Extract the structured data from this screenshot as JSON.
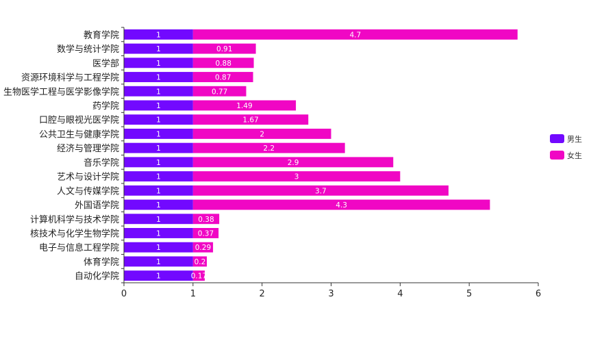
{
  "chart_data": {
    "type": "bar",
    "orientation": "horizontal",
    "stacked": true,
    "categories": [
      "教育学院",
      "数学与统计学院",
      "医学部",
      "资源环境科学与工程学院",
      "生物医学工程与医学影像学院",
      "药学院",
      "口腔与眼视光医学院",
      "公共卫生与健康学院",
      "经济与管理学院",
      "音乐学院",
      "艺术与设计学院",
      "人文与传媒学院",
      "外国语学院",
      "计算机科学与技术学院",
      "核技术与化学生物学院",
      "电子与信息工程学院",
      "体育学院",
      "自动化学院"
    ],
    "series": [
      {
        "name": "男生",
        "color": "#7209ff",
        "values": [
          1,
          1,
          1,
          1,
          1,
          1,
          1,
          1,
          1,
          1,
          1,
          1,
          1,
          1,
          1,
          1,
          1,
          1
        ],
        "labels": [
          "1",
          "1",
          "1",
          "1",
          "1",
          "1",
          "1",
          "1",
          "1",
          "1",
          "1",
          "1",
          "1",
          "1",
          "1",
          "1",
          "1",
          "1"
        ]
      },
      {
        "name": "女生",
        "color": "#f007c4",
        "values": [
          4.7,
          0.91,
          0.88,
          0.87,
          0.77,
          1.49,
          1.67,
          2,
          2.2,
          2.9,
          3,
          3.7,
          4.3,
          0.38,
          0.37,
          0.29,
          0.2,
          0.17
        ],
        "labels": [
          "4.7",
          "0.91",
          "0.88",
          "0.87",
          "0.77",
          "1.49",
          "1.67",
          "2",
          "2.2",
          "2.9",
          "3",
          "3.7",
          "4.3",
          "0.38",
          "0.37",
          "0.29",
          "0.2",
          "0.17"
        ]
      }
    ],
    "x_ticks": [
      "0",
      "1",
      "2",
      "3",
      "4",
      "5",
      "6"
    ],
    "xlim": [
      0,
      6
    ],
    "grid": false,
    "legend_position": "right"
  }
}
